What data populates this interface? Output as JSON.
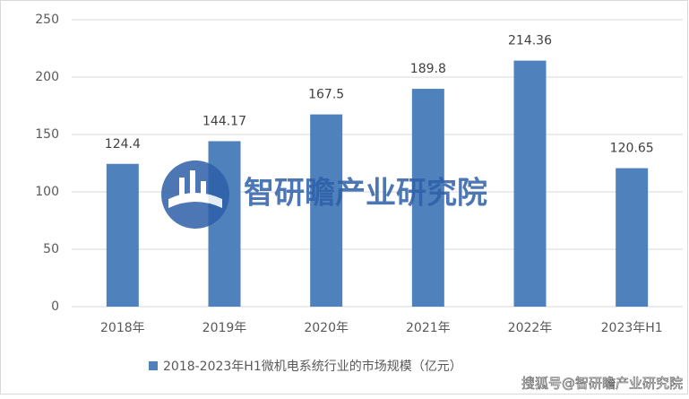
{
  "chart_data": {
    "type": "bar",
    "categories": [
      "2018年",
      "2019年",
      "2020年",
      "2021年",
      "2022年",
      "2023年H1"
    ],
    "series": [
      {
        "name": "2018-2023年H1微机电系统行业的市场规模（亿元）",
        "color": "#4f81bd",
        "values": [
          124.4,
          144.17,
          167.5,
          189.8,
          214.36,
          120.65
        ]
      }
    ],
    "ylim": [
      0,
      250
    ],
    "yticks": [
      0,
      50,
      100,
      150,
      200,
      250
    ],
    "grid": true,
    "legend": "bottom",
    "watermark": "智研瞻产业研究院",
    "source": "搜狐号@智研瞻产业研究院"
  }
}
